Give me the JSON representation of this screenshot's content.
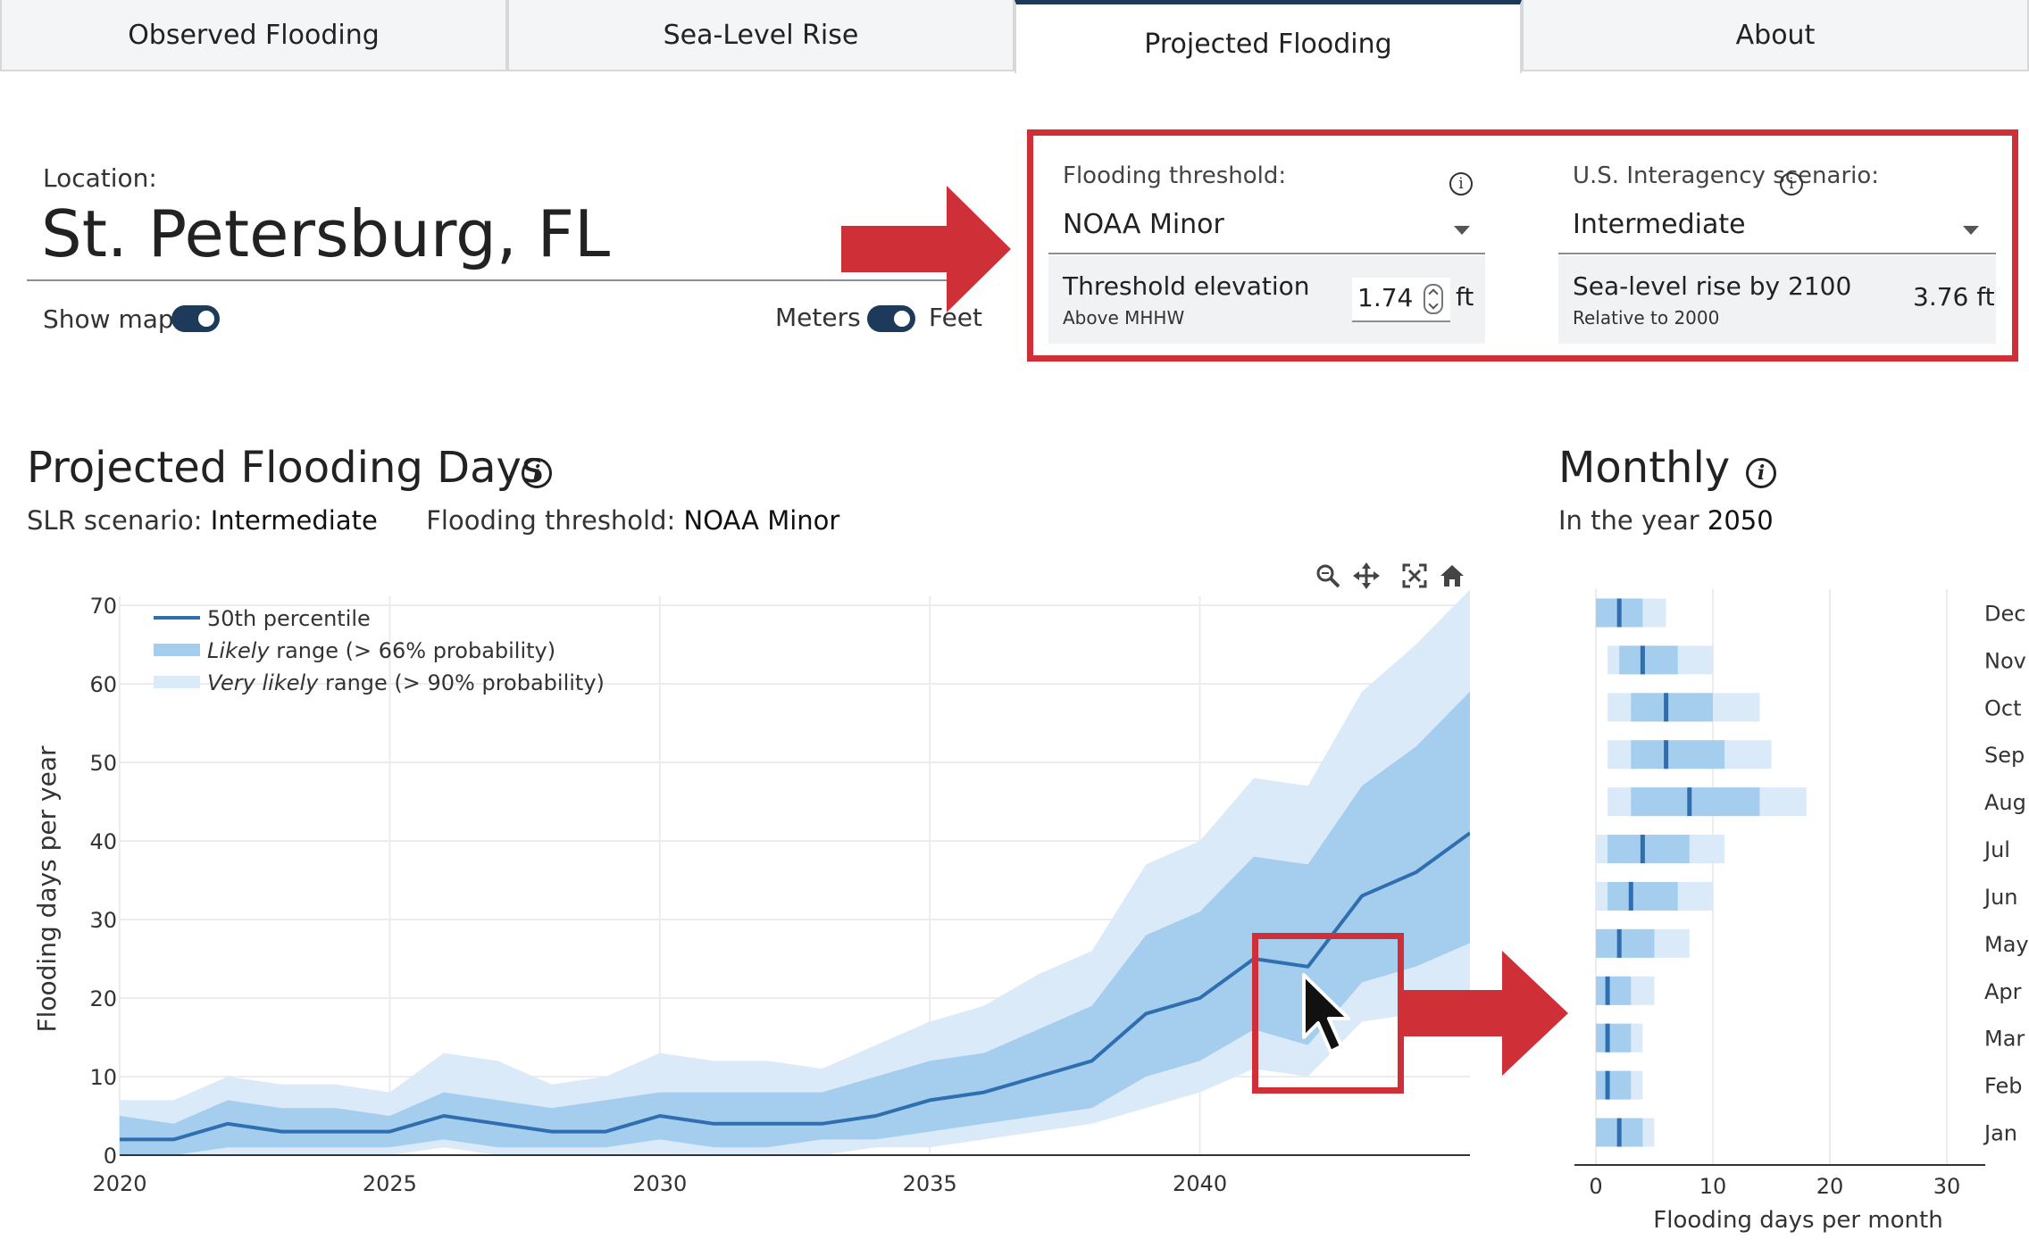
{
  "tabs": [
    {
      "label": "Observed Flooding",
      "active": false
    },
    {
      "label": "Sea-Level Rise",
      "active": false
    },
    {
      "label": "Projected Flooding",
      "active": true
    },
    {
      "label": "About",
      "active": false
    }
  ],
  "location": {
    "label": "Location:",
    "value": "St. Petersburg, FL"
  },
  "toggles": {
    "show_map_label": "Show map",
    "meters_label": "Meters",
    "feet_label": "Feet"
  },
  "settings": {
    "threshold": {
      "label": "Flooding threshold:",
      "value": "NOAA Minor",
      "elevation_title": "Threshold elevation",
      "elevation_sub": "Above MHHW",
      "elevation_value": "1.74",
      "unit": "ft"
    },
    "scenario": {
      "label": "U.S. Interagency scenario:",
      "value": "Intermediate",
      "slr_title": "Sea-level rise by 2100",
      "slr_sub": "Relative to 2000",
      "slr_value": "3.76 ft"
    }
  },
  "projected": {
    "title": "Projected Flooding Days",
    "slr_label": "SLR scenario:",
    "slr_value": "Intermediate",
    "threshold_label": "Flooding threshold:",
    "threshold_value": "NOAA Minor",
    "toolbar": [
      "zoom-icon",
      "pan-icon",
      "autoscale-icon",
      "home-icon"
    ]
  },
  "monthly": {
    "title": "Monthly",
    "year_prefix": "In the year",
    "year_value": "2050"
  },
  "colors": {
    "accent_dark": "#1e3a5a",
    "median_line": "#2f6fb0",
    "likely_band": "#a5cdee",
    "very_likely_band": "#dbeaf8",
    "highlight_red": "#cf2f36"
  },
  "chart_data": [
    {
      "type": "line",
      "ylabel": "Flooding days per year",
      "xlabel": "",
      "xlim": [
        2020,
        2045
      ],
      "ylim": [
        0,
        70
      ],
      "x_ticks": [
        2020,
        2025,
        2030,
        2035,
        2040
      ],
      "y_ticks": [
        0,
        10,
        20,
        30,
        40,
        50,
        60,
        70
      ],
      "legend": {
        "position": "top-left",
        "entries": [
          {
            "italic": "",
            "text": "50th percentile"
          },
          {
            "italic": "Likely",
            "text": " range (> 66% probability)"
          },
          {
            "italic": "Very likely",
            "text": " range (> 90% probability)"
          }
        ]
      },
      "x": [
        2020,
        2021,
        2022,
        2023,
        2024,
        2025,
        2026,
        2027,
        2028,
        2029,
        2030,
        2031,
        2032,
        2033,
        2034,
        2035,
        2036,
        2037,
        2038,
        2039,
        2040,
        2041,
        2042,
        2043,
        2044,
        2045
      ],
      "series": [
        {
          "name": "50th percentile",
          "values": [
            2,
            2,
            4,
            3,
            3,
            3,
            5,
            4,
            3,
            3,
            5,
            4,
            4,
            4,
            5,
            7,
            8,
            10,
            12,
            18,
            20,
            25,
            24,
            33,
            36,
            41
          ]
        },
        {
          "name": "Likely range (> 66% probability)",
          "low": [
            0,
            0,
            1,
            1,
            1,
            1,
            2,
            1,
            1,
            1,
            2,
            1,
            1,
            2,
            2,
            3,
            4,
            5,
            6,
            10,
            12,
            16,
            14,
            22,
            24,
            27
          ],
          "high": [
            5,
            4,
            7,
            6,
            6,
            5,
            8,
            7,
            6,
            7,
            8,
            8,
            8,
            8,
            10,
            12,
            13,
            16,
            19,
            28,
            31,
            38,
            37,
            47,
            52,
            59
          ]
        },
        {
          "name": "Very likely range (> 90% probability)",
          "low": [
            0,
            0,
            0,
            0,
            0,
            0,
            1,
            0,
            0,
            0,
            0,
            0,
            0,
            0,
            1,
            1,
            2,
            3,
            4,
            6,
            8,
            11,
            10,
            17,
            18,
            20
          ],
          "high": [
            7,
            7,
            10,
            9,
            9,
            8,
            13,
            12,
            9,
            10,
            13,
            12,
            12,
            11,
            14,
            17,
            19,
            23,
            26,
            37,
            40,
            48,
            47,
            59,
            65,
            72
          ]
        }
      ]
    },
    {
      "type": "bar",
      "orientation": "horizontal",
      "xlabel": "Flooding days per month",
      "xlim": [
        0,
        30
      ],
      "x_ticks": [
        0,
        10,
        20,
        30
      ],
      "categories": [
        "Jan",
        "Feb",
        "Mar",
        "Apr",
        "May",
        "Jun",
        "Jul",
        "Aug",
        "Sep",
        "Oct",
        "Nov",
        "Dec"
      ],
      "median": [
        2,
        1,
        1,
        1,
        2,
        3,
        4,
        8,
        6,
        6,
        4,
        2
      ],
      "likely_low": [
        0,
        0,
        0,
        0,
        0,
        1,
        1,
        3,
        3,
        3,
        2,
        0
      ],
      "likely_high": [
        4,
        3,
        3,
        3,
        5,
        7,
        8,
        14,
        11,
        10,
        7,
        4
      ],
      "very_likely_low": [
        0,
        0,
        0,
        0,
        0,
        0,
        0,
        1,
        1,
        1,
        1,
        0
      ],
      "very_likely_high": [
        5,
        4,
        4,
        5,
        8,
        10,
        11,
        18,
        15,
        14,
        10,
        6
      ]
    }
  ]
}
